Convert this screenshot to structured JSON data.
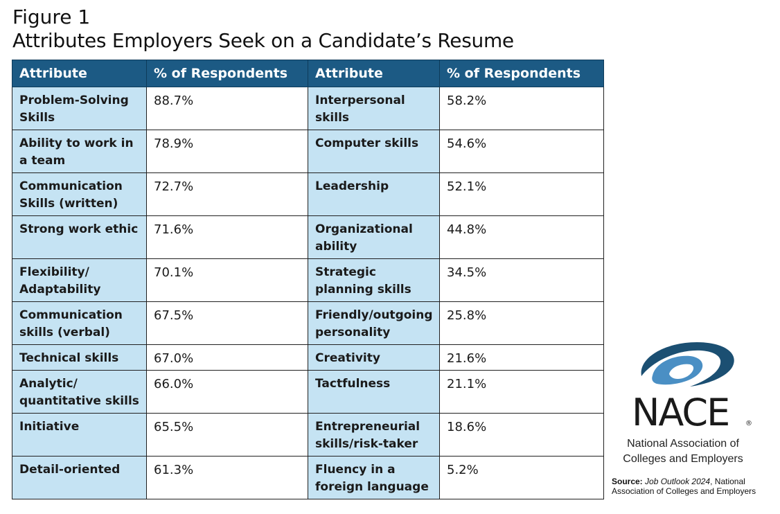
{
  "figure": {
    "label": "Figure 1",
    "title": "Attributes Employers Seek on a Candidate’s Resume"
  },
  "table": {
    "headers": [
      "Attribute",
      "% of Respondents",
      "Attribute",
      "% of Respondents"
    ],
    "rows": [
      {
        "left_attr": "Problem-Solving Skills",
        "left_pct": "88.7%",
        "right_attr": "Interpersonal skills",
        "right_pct": "58.2%"
      },
      {
        "left_attr": "Ability to work in a team",
        "left_pct": "78.9%",
        "right_attr": "Computer skills",
        "right_pct": "54.6%"
      },
      {
        "left_attr": "Communication Skills (written)",
        "left_pct": "72.7%",
        "right_attr": "Leadership",
        "right_pct": "52.1%"
      },
      {
        "left_attr": "Strong work ethic",
        "left_pct": "71.6%",
        "right_attr": "Organizational ability",
        "right_pct": "44.8%"
      },
      {
        "left_attr": "Flexibility/ Adaptability",
        "left_pct": "70.1%",
        "right_attr": "Strategic planning skills",
        "right_pct": "34.5%"
      },
      {
        "left_attr": "Communication skills (verbal)",
        "left_pct": "67.5%",
        "right_attr": "Friendly/outgoing personality",
        "right_pct": "25.8%"
      },
      {
        "left_attr": "Technical skills",
        "left_pct": "67.0%",
        "right_attr": "Creativity",
        "right_pct": "21.6%"
      },
      {
        "left_attr": "Analytic/ quantitative skills",
        "left_pct": "66.0%",
        "right_attr": "Tactfulness",
        "right_pct": "21.1%"
      },
      {
        "left_attr": "Initiative",
        "left_pct": "65.5%",
        "right_attr": "Entrepreneurial skills/risk-taker",
        "right_pct": "18.6%"
      },
      {
        "left_attr": "Detail-oriented",
        "left_pct": "61.3%",
        "right_attr": "Fluency in a foreign language",
        "right_pct": "5.2%"
      }
    ]
  },
  "logo": {
    "wordmark": "NACE",
    "registered": "®",
    "org_line1": "National Association of",
    "org_line2": "Colleges and Employers"
  },
  "source": {
    "label": "Source:",
    "publication": "Job Outlook 2024",
    "rest_line1": ", National",
    "rest_line2": "Association of Colleges and Employers"
  },
  "colors": {
    "header_bg": "#1c5a84",
    "attribute_cell_bg": "#c5e3f3",
    "logo_dark_blue": "#1b4f72",
    "logo_light_blue": "#4a8fc4"
  }
}
